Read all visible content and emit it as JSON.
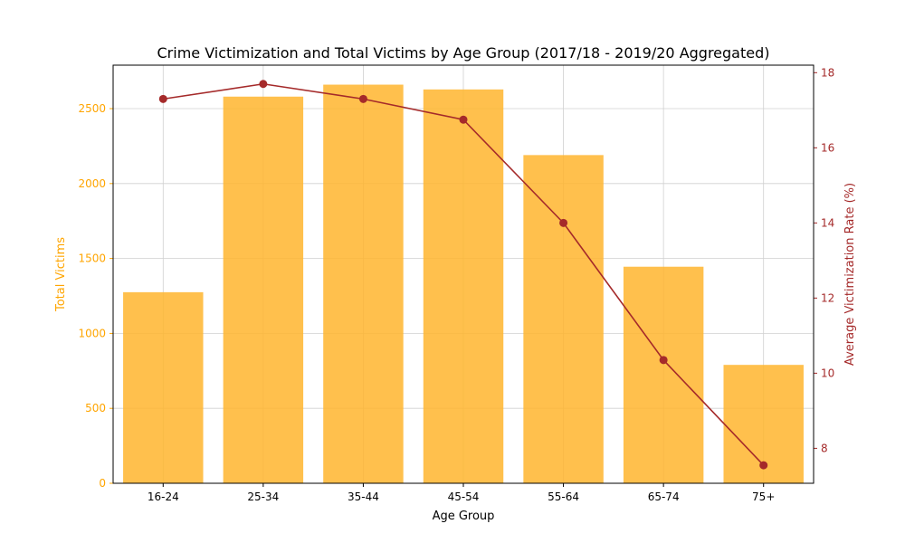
{
  "chart_data": {
    "type": "bar+line",
    "title": "Crime Victimization and Total Victims by Age Group (2017/18 - 2019/20 Aggregated)",
    "xlabel": "Age Group",
    "ylabel_left": "Total Victims",
    "ylabel_right": "Average Victimization Rate (%)",
    "categories": [
      "16-24",
      "25-34",
      "35-44",
      "45-54",
      "55-64",
      "65-74",
      "75+"
    ],
    "series": [
      {
        "kind": "bar",
        "axis": "left",
        "color": "#FFB52E",
        "values": [
          1275,
          2580,
          2660,
          2628,
          2190,
          1445,
          790
        ]
      },
      {
        "kind": "line",
        "axis": "right",
        "color": "#A52A2A",
        "values": [
          17.3,
          17.7,
          17.3,
          16.75,
          14.0,
          10.35,
          7.55
        ]
      }
    ],
    "ylim_left": [
      0,
      2790
    ],
    "ylim_right": [
      7.07,
      18.2
    ],
    "yticks_left": [
      "0",
      "500",
      "1000",
      "1500",
      "2000",
      "2500"
    ],
    "yticks_right": [
      "8",
      "10",
      "12",
      "14",
      "16",
      "18"
    ],
    "grid": true,
    "left_axis_color": "#FFA500",
    "right_axis_color": "#A52A2A"
  }
}
